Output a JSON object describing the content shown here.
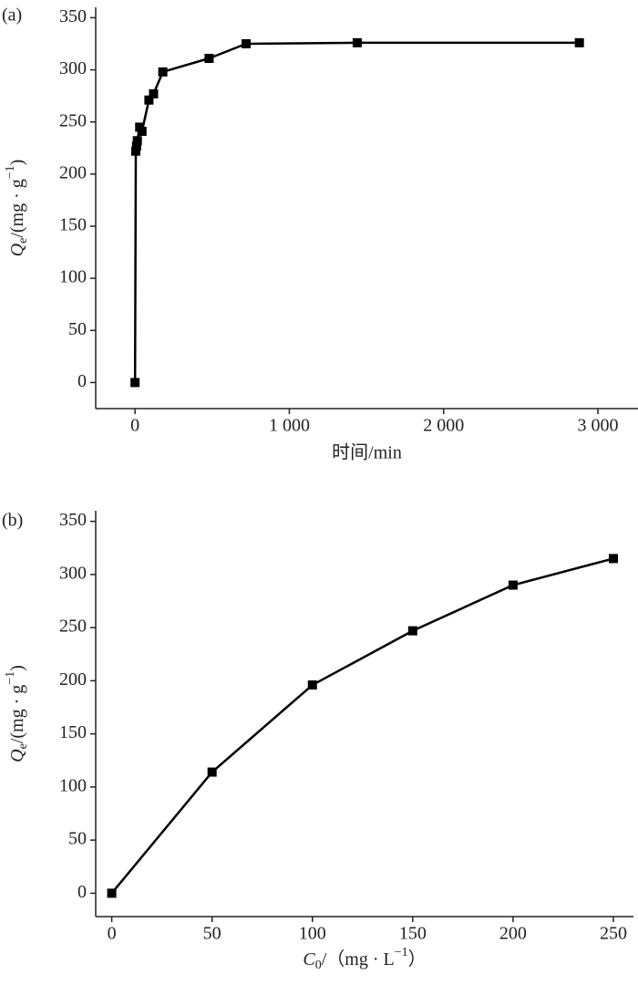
{
  "chart_data": [
    {
      "type": "line",
      "panel_label": "(a)",
      "ylabel": [
        "Q",
        "e",
        "/(mg · g",
        "−1",
        ")"
      ],
      "xlabel": "时间/min",
      "x": [
        0,
        5,
        10,
        15,
        30,
        45,
        90,
        120,
        180,
        480,
        720,
        1440,
        2880
      ],
      "series": [
        {
          "name": "Qe",
          "color": "#000000",
          "values": [
            0,
            222,
            227,
            232,
            245,
            241,
            271,
            277,
            298,
            311,
            325,
            326,
            326
          ]
        }
      ],
      "xlim": [
        -255,
        3260
      ],
      "ylim": [
        -25,
        360
      ],
      "xticks": [
        0,
        {
          "value": 1000,
          "label": "1 000"
        },
        {
          "value": 2000,
          "label": "2 000"
        },
        {
          "value": 3000,
          "label": "3 000"
        }
      ],
      "yticks": [
        0,
        50,
        100,
        150,
        200,
        250,
        300,
        350
      ]
    },
    {
      "type": "line",
      "panel_label": "(b)",
      "ylabel": [
        "Q",
        "e",
        "/(mg · g",
        "−1",
        ")"
      ],
      "xlabel": [
        "C",
        "0",
        "/（mg · L",
        "−1",
        "）"
      ],
      "x": [
        0,
        50,
        100,
        150,
        200,
        250
      ],
      "series": [
        {
          "name": "Qe",
          "color": "#000000",
          "values": [
            0,
            114,
            196,
            247,
            290,
            315
          ]
        }
      ],
      "xlim": [
        -8,
        260
      ],
      "ylim": [
        -22,
        360
      ],
      "xticks": [
        0,
        50,
        100,
        150,
        200,
        250
      ],
      "yticks": [
        0,
        50,
        100,
        150,
        200,
        250,
        300,
        350
      ]
    }
  ]
}
